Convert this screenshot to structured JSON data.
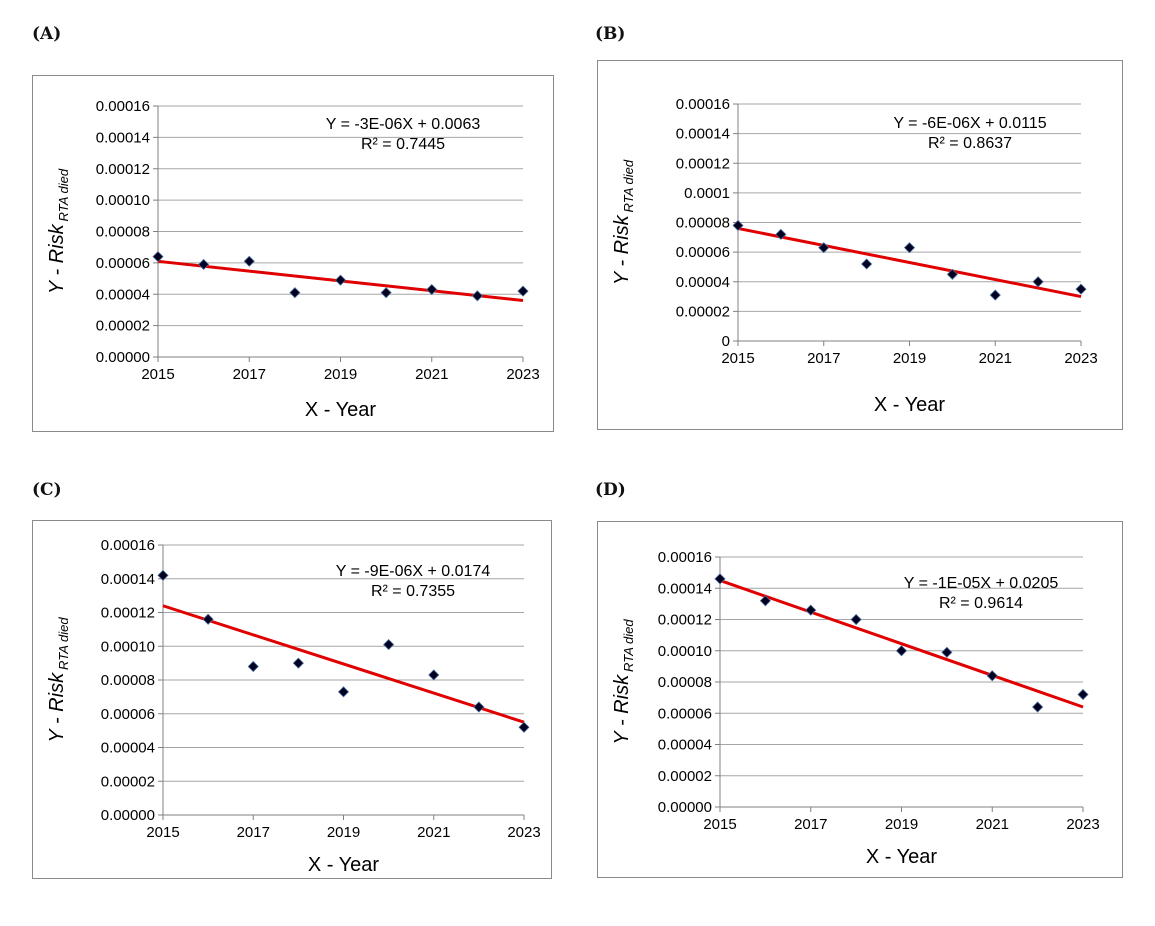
{
  "chart_data": [
    {
      "type": "scatter",
      "panel_label": "(A)",
      "xlabel": "X - Year",
      "ylabel_main": "Y - Risk",
      "ylabel_sub": "RTA died",
      "xlim": [
        2015,
        2023
      ],
      "ylim": [
        0,
        0.00016
      ],
      "x_ticks": [
        "2015",
        "2017",
        "2019",
        "2021",
        "2023"
      ],
      "y_ticks": [
        "0.00000",
        "0.00002",
        "0.00004",
        "0.00006",
        "0.00008",
        "0.00010",
        "0.00012",
        "0.00014",
        "0.00016"
      ],
      "x": [
        2015,
        2016,
        2017,
        2018,
        2019,
        2020,
        2021,
        2022,
        2023
      ],
      "y": [
        6.4e-05,
        5.9e-05,
        6.1e-05,
        4.1e-05,
        4.9e-05,
        4.1e-05,
        4.3e-05,
        3.9e-05,
        4.2e-05
      ],
      "trendline": {
        "y_start": 6.1e-05,
        "y_end": 3.6e-05,
        "color": "#e00000"
      },
      "equation": "Y = -3E-06X + 0.0063",
      "r_squared": "R² = 0.7445",
      "marker_color": "#000020"
    },
    {
      "type": "scatter",
      "panel_label": "(B)",
      "xlabel": "X - Year",
      "ylabel_main": "Y - Risk",
      "ylabel_sub": "RTA died",
      "xlim": [
        2015,
        2023
      ],
      "ylim": [
        0,
        0.00016
      ],
      "x_ticks": [
        "2015",
        "2017",
        "2019",
        "2021",
        "2023"
      ],
      "y_ticks": [
        "0",
        "0.00002",
        "0.00004",
        "0.00006",
        "0.00008",
        "0.0001",
        "0.00012",
        "0.00014",
        "0.00016"
      ],
      "x": [
        2015,
        2016,
        2017,
        2018,
        2019,
        2020,
        2021,
        2022,
        2023
      ],
      "y": [
        7.8e-05,
        7.2e-05,
        6.3e-05,
        5.2e-05,
        6.3e-05,
        4.5e-05,
        3.1e-05,
        4e-05,
        3.5e-05
      ],
      "trendline": {
        "y_start": 7.6e-05,
        "y_end": 3e-05,
        "color": "#e00000"
      },
      "equation": "Y = -6E-06X + 0.0115",
      "r_squared": "R² = 0.8637",
      "marker_color": "#000020"
    },
    {
      "type": "scatter",
      "panel_label": "(C)",
      "xlabel": "X - Year",
      "ylabel_main": "Y - Risk",
      "ylabel_sub": "RTA died",
      "xlim": [
        2015,
        2023
      ],
      "ylim": [
        0,
        0.00016
      ],
      "x_ticks": [
        "2015",
        "2017",
        "2019",
        "2021",
        "2023"
      ],
      "y_ticks": [
        "0.00000",
        "0.00002",
        "0.00004",
        "0.00006",
        "0.00008",
        "0.00010",
        "0.00012",
        "0.00014",
        "0.00016"
      ],
      "x": [
        2015,
        2016,
        2017,
        2018,
        2019,
        2020,
        2021,
        2022,
        2023
      ],
      "y": [
        0.000142,
        0.000116,
        8.8e-05,
        9e-05,
        7.3e-05,
        0.000101,
        8.3e-05,
        6.4e-05,
        5.2e-05
      ],
      "trendline": {
        "y_start": 0.000124,
        "y_end": 5.5e-05,
        "color": "#e00000"
      },
      "equation": "Y = -9E-06X + 0.0174",
      "r_squared": "R² = 0.7355",
      "marker_color": "#000020"
    },
    {
      "type": "scatter",
      "panel_label": "(D)",
      "xlabel": "X - Year",
      "ylabel_main": "Y - Risk",
      "ylabel_sub": "RTA died",
      "xlim": [
        2015,
        2023
      ],
      "ylim": [
        0,
        0.00016
      ],
      "x_ticks": [
        "2015",
        "2017",
        "2019",
        "2021",
        "2023"
      ],
      "y_ticks": [
        "0.00000",
        "0.00002",
        "0.00004",
        "0.00006",
        "0.00008",
        "0.00010",
        "0.00012",
        "0.00014",
        "0.00016"
      ],
      "x": [
        2015,
        2016,
        2017,
        2018,
        2019,
        2020,
        2021,
        2022,
        2023
      ],
      "y": [
        0.000146,
        0.000132,
        0.000126,
        0.00012,
        0.0001,
        9.9e-05,
        8.4e-05,
        6.4e-05,
        7.2e-05
      ],
      "trendline": {
        "y_start": 0.000145,
        "y_end": 6.4e-05,
        "color": "#e00000"
      },
      "equation": "Y = -1E-05X + 0.0205",
      "r_squared": "R² = 0.9614",
      "marker_color": "#000020"
    }
  ]
}
